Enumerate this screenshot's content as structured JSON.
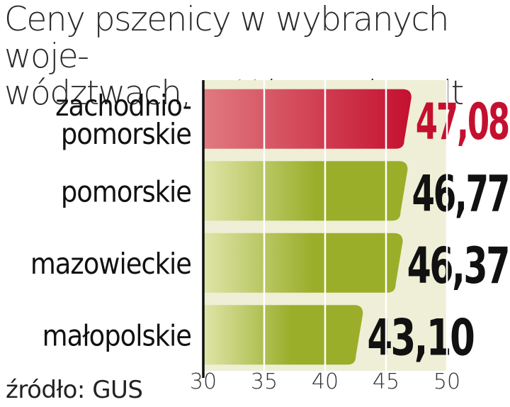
{
  "chart_data": {
    "type": "bar",
    "orientation": "horizontal",
    "title_lines": [
      "Ceny pszenicy w wybranych woje-",
      "wództwach, w X br. w zł za dt"
    ],
    "categories": [
      [
        "zachodnio-",
        "pomorskie"
      ],
      [
        "pomorskie"
      ],
      [
        "mazowieckie"
      ],
      [
        "małopolskie"
      ]
    ],
    "values": [
      47.08,
      46.77,
      46.37,
      43.1
    ],
    "value_labels": [
      "47,08",
      "46,77",
      "46,37",
      "43,10"
    ],
    "highlight_index": 0,
    "xlim": [
      30,
      50
    ],
    "xticks": [
      30,
      35,
      40,
      45,
      50
    ],
    "grid": true,
    "colors": {
      "highlight_start": "#e07a80",
      "highlight_end": "#c4102f",
      "bar_start": "#dfe5a8",
      "bar_end": "#9aae2a",
      "highlight_label": "#c4102f",
      "label": "#111111",
      "band": "#eeefd6"
    },
    "source": "źródło: GUS"
  }
}
